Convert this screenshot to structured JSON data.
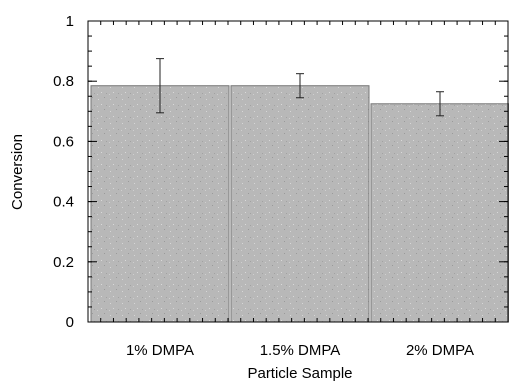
{
  "chart_data": {
    "type": "bar",
    "categories": [
      "1% DMPA",
      "1.5% DMPA",
      "2% DMPA"
    ],
    "values": [
      0.785,
      0.785,
      0.725
    ],
    "error_low": [
      0.695,
      0.745,
      0.685
    ],
    "error_high": [
      0.875,
      0.825,
      0.765
    ],
    "xlabel": "Particle Sample",
    "ylabel": "Conversion",
    "ylim": [
      0,
      1
    ],
    "yticks": [
      0,
      0.2,
      0.4,
      0.6,
      0.8,
      1
    ],
    "ytick_labels": [
      "0",
      "0.2",
      "0.4",
      "0.6",
      "0.8",
      "1"
    ],
    "minor_ytick_step": 0.05,
    "grid": false,
    "bar_color": "#b8b8b8",
    "axis_color": "#000000"
  }
}
